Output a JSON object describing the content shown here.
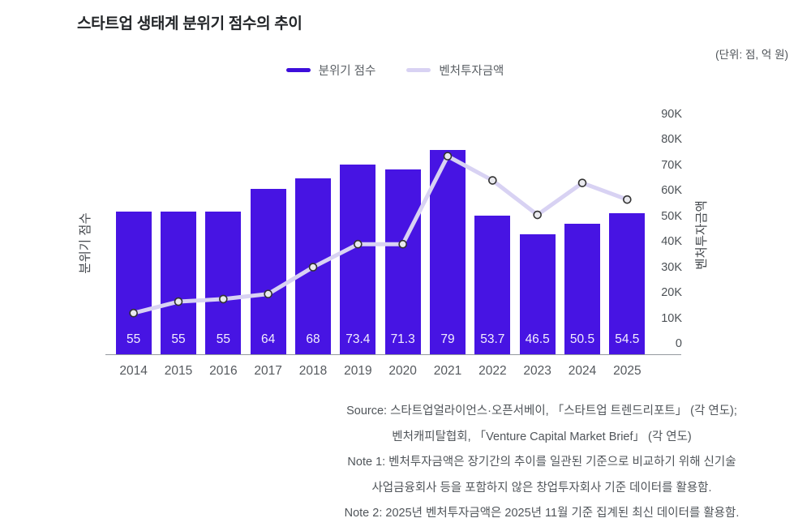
{
  "header": {
    "title": "스타트업 생태계 분위기 점수의 추이",
    "unit_note": "(단위: 점, 억 원)"
  },
  "legend": [
    {
      "label": "분위기 점수",
      "color": "#3d0edb",
      "type": "bar"
    },
    {
      "label": "벤처투자금액",
      "color": "#d8d2f3",
      "type": "line"
    }
  ],
  "chart_data": {
    "type": "bar+line",
    "title": "스타트업 생태계 분위기 점수의 추이",
    "unit": "점, 억 원",
    "categories": [
      "2014",
      "2015",
      "2016",
      "2017",
      "2018",
      "2019",
      "2020",
      "2021",
      "2022",
      "2023",
      "2024",
      "2025"
    ],
    "series": [
      {
        "name": "분위기 점수",
        "type": "bar",
        "axis": "left",
        "color": "#4714e3",
        "values": [
          55,
          55,
          55,
          64,
          68,
          73.4,
          71.3,
          79,
          53.7,
          46.5,
          50.5,
          54.5
        ],
        "labels": [
          "55",
          "55",
          "55",
          "64",
          "68",
          "73.4",
          "71.3",
          "79",
          "53.7",
          "46.5",
          "50.5",
          "54.5"
        ]
      },
      {
        "name": "벤처투자금액",
        "type": "line",
        "axis": "right",
        "color": "#d8d2f3",
        "marker_fill": "#eaeaef",
        "marker_stroke": "#333333",
        "values": [
          12000,
          16500,
          17500,
          19500,
          30000,
          39000,
          39000,
          73500,
          64000,
          50500,
          63000,
          56500
        ],
        "values_note": "estimated from marker positions against right axis"
      }
    ],
    "left_axis": {
      "title": "분위기 점수",
      "min": 0,
      "max": 93,
      "ticks_visible": false
    },
    "right_axis": {
      "title": "벤처투자금액",
      "min": 0,
      "max": 90000,
      "ticks": [
        "0",
        "10K",
        "20K",
        "30K",
        "40K",
        "50K",
        "60K",
        "70K",
        "80K",
        "90K"
      ]
    },
    "grid": false,
    "legend_position": "top-center"
  },
  "footnotes": [
    "Source: 스타트업얼라이언스·오픈서베이, 「스타트업 트렌드리포트」 (각 연도);",
    "벤처캐피탈협회, 「Venture Capital Market Brief」 (각 연도)",
    "Note 1: 벤처투자금액은 장기간의 추이를 일관된 기준으로 비교하기 위해 신기술",
    "사업금융회사 등을 포함하지 않은 창업투자회사 기준 데이터를 활용함.",
    "Note 2: 2025년 벤처투자금액은 2025년 11월 기준 집계된 최신 데이터를 활용함."
  ]
}
